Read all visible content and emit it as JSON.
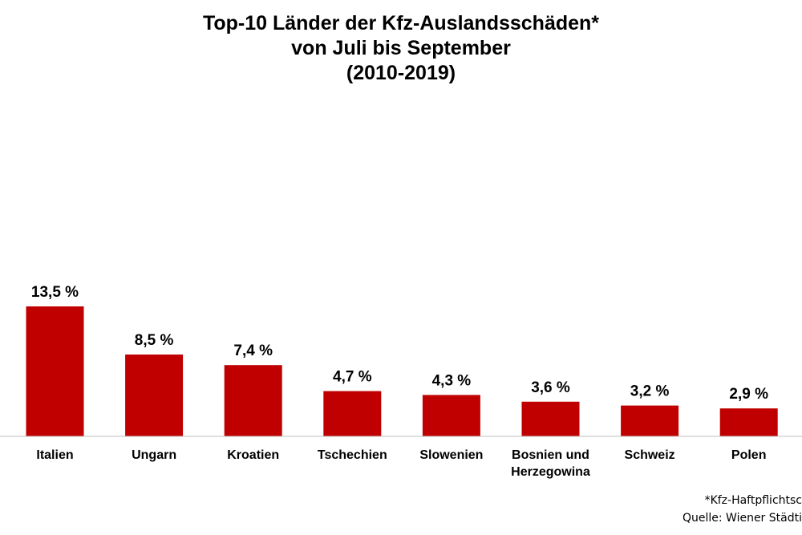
{
  "chart_data": {
    "type": "bar",
    "title_lines": [
      "Top-10 Länder der Kfz-Auslandsschäden*",
      "von Juli bis September",
      "(2010-2019)"
    ],
    "categories": [
      [
        "Italien"
      ],
      [
        "Ungarn"
      ],
      [
        "Kroatien"
      ],
      [
        "Tschechien"
      ],
      [
        "Slowenien"
      ],
      [
        "Bosnien und",
        "Herzegowina"
      ],
      [
        "Schweiz"
      ],
      [
        "Polen"
      ]
    ],
    "values": [
      13.5,
      8.5,
      7.4,
      4.7,
      4.3,
      3.6,
      3.2,
      2.9
    ],
    "data_labels": [
      "13,5 %",
      "8,5 %",
      "7,4 %",
      "4,7 %",
      "4,3 %",
      "3,6 %",
      "3,2 %",
      "2,9 %"
    ],
    "ylim": [
      0,
      20
    ],
    "grid": false,
    "bar_color": "#c00000"
  },
  "footnotes": {
    "note": "*Kfz-Haftpflichtsc",
    "source": "Quelle: Wiener Städti"
  }
}
